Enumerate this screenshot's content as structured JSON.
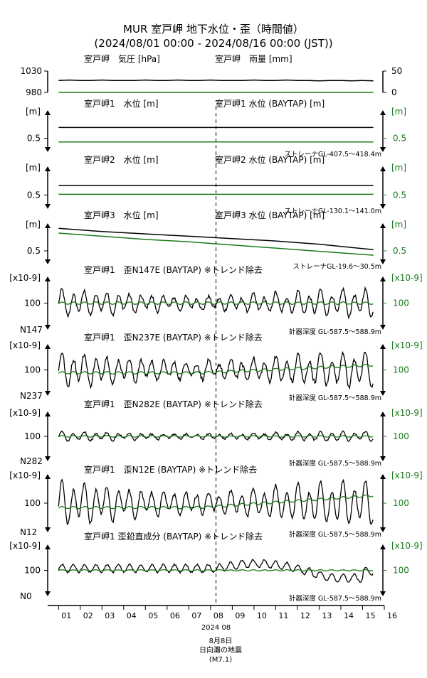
{
  "header": {
    "title": "MUR 室戸岬 地下水位・歪（時間値）",
    "subtitle": "(2024/08/01 00:00 - 2024/08/16 00:00 (JST))"
  },
  "colors": {
    "primary": "#000000",
    "secondary": "#1a7a1a",
    "event_line": "#000000"
  },
  "event": {
    "day": 8.25,
    "date_label": "8月8日",
    "name": "日向灘の地震",
    "magnitude": "(M7.1)"
  },
  "xaxis": {
    "range": [
      0.5,
      16
    ],
    "ticks": [
      "01",
      "02",
      "03",
      "04",
      "05",
      "06",
      "07",
      "08",
      "09",
      "10",
      "11",
      "12",
      "13",
      "14",
      "15",
      "16"
    ],
    "year_month_label": "2024 08"
  },
  "chart_data": [
    {
      "type": "line",
      "left_title": "室戸岬　気圧 [hPa]",
      "right_title": "室戸岬　雨量 [mm]",
      "left_ticks": [
        "1030",
        "980"
      ],
      "right_ticks": [
        "50",
        "0"
      ],
      "ylim_left": [
        980,
        1030
      ],
      "ylim_right": [
        0,
        50
      ],
      "series": [
        {
          "axis": "left",
          "color": "#000000",
          "x": [
            1,
            1.5,
            2,
            2.5,
            3,
            3.5,
            4,
            4.5,
            5,
            5.5,
            6,
            6.5,
            7,
            7.5,
            8,
            8.5,
            9,
            9.5,
            10,
            10.5,
            11,
            11.5,
            12,
            12.5,
            13,
            13.5,
            14,
            14.5,
            15,
            15.5
          ],
          "values": [
            1008,
            1009,
            1008,
            1008,
            1009,
            1008,
            1008,
            1008,
            1009,
            1008,
            1008,
            1009,
            1008,
            1008,
            1009,
            1008,
            1008,
            1008,
            1009,
            1008,
            1008,
            1009,
            1008,
            1008,
            1007,
            1008,
            1008,
            1007,
            1008,
            1007
          ]
        },
        {
          "axis": "right",
          "color": "#1a7a1a",
          "x": [
            1,
            15.5
          ],
          "values": [
            0,
            0
          ]
        }
      ]
    },
    {
      "type": "line",
      "left_title": "室戸岬1　水位 [m]",
      "right_title": "室戸岬1 水位 (BAYTAP) [m]",
      "left_unit": "[m]",
      "right_unit": "[m]",
      "left_ticks": [
        "0.5"
      ],
      "right_ticks": [
        "0.5"
      ],
      "note": "ストレーナGL-407.5～418.4m",
      "ylim": [
        0.45,
        0.7
      ],
      "series": [
        {
          "axis": "left",
          "color": "#000000",
          "x": [
            1,
            15.5
          ],
          "values": [
            0.6,
            0.6
          ]
        },
        {
          "axis": "right",
          "color": "#1a7a1a",
          "x": [
            1,
            15.5
          ],
          "values": [
            0.5,
            0.5
          ]
        }
      ]
    },
    {
      "type": "line",
      "left_title": "室戸岬2　水位 [m]",
      "right_title": "室戸岬2 水位 (BAYTAP) [m]",
      "left_unit": "[m]",
      "right_unit": "[m]",
      "left_ticks": [
        "0.5"
      ],
      "right_ticks": [
        "0.5"
      ],
      "note": "ストレーナGL-130.1～141.0m",
      "ylim": [
        0.45,
        0.7
      ],
      "series": [
        {
          "axis": "left",
          "color": "#000000",
          "x": [
            1,
            15.5
          ],
          "values": [
            0.59,
            0.59
          ]
        },
        {
          "axis": "right",
          "color": "#1a7a1a",
          "x": [
            1,
            15.5
          ],
          "values": [
            0.53,
            0.53
          ]
        }
      ]
    },
    {
      "type": "line",
      "left_title": "室戸岬3　水位 [m]",
      "right_title": "室戸岬3 水位 (BAYTAP) [m]",
      "left_unit": "[m]",
      "right_unit": "[m]",
      "left_ticks": [
        "0.5"
      ],
      "right_ticks": [
        "0.5"
      ],
      "note": "ストレーナGL-19.6～30.5m",
      "ylim": [
        0.3,
        0.75
      ],
      "series": [
        {
          "axis": "left",
          "color": "#000000",
          "x": [
            1,
            3,
            5,
            7,
            9,
            11,
            13,
            15.5
          ],
          "values": [
            0.72,
            0.68,
            0.65,
            0.62,
            0.59,
            0.56,
            0.52,
            0.45
          ]
        },
        {
          "axis": "right",
          "color": "#1a7a1a",
          "x": [
            1,
            3,
            5,
            7,
            9,
            11,
            13,
            15.5
          ],
          "values": [
            0.66,
            0.62,
            0.58,
            0.55,
            0.51,
            0.47,
            0.43,
            0.38
          ]
        }
      ]
    },
    {
      "type": "line",
      "left_title": "室戸岬1　歪N147E (BAYTAP) ※トレンド除去",
      "left_unit": "[x10-9]",
      "right_unit": "[x10-9]",
      "left_ticks": [
        "100"
      ],
      "right_ticks": [
        "100"
      ],
      "bottom_label": "N147",
      "note": "計器深度 GL-587.5～588.9m",
      "ylim": [
        -120,
        120
      ],
      "series": [
        {
          "axis": "left",
          "color": "#000000",
          "kind": "tidal",
          "amplitude": 75,
          "noise": 18,
          "offset": 0,
          "drift": 0
        },
        {
          "axis": "right",
          "color": "#1a7a1a",
          "kind": "smooth",
          "amplitude": 6,
          "offset": 0,
          "drift": 0
        }
      ]
    },
    {
      "type": "line",
      "left_title": "室戸岬1　歪N237E (BAYTAP) ※トレンド除去",
      "left_unit": "[x10-9]",
      "right_unit": "[x10-9]",
      "left_ticks": [
        "100"
      ],
      "right_ticks": [
        "100"
      ],
      "bottom_label": "N237",
      "note": "計器深度 GL-587.5～588.9m",
      "ylim": [
        -120,
        120
      ],
      "series": [
        {
          "axis": "left",
          "color": "#000000",
          "kind": "tidal",
          "amplitude": 100,
          "noise": 25,
          "offset": 0,
          "drift": 0
        },
        {
          "axis": "right",
          "color": "#1a7a1a",
          "kind": "smooth",
          "amplitude": 6,
          "offset": -15,
          "drift": 40
        }
      ]
    },
    {
      "type": "line",
      "left_title": "室戸岬1　歪N282E (BAYTAP) ※トレンド除去",
      "left_unit": "[x10-9]",
      "right_unit": "[x10-9]",
      "left_ticks": [
        "100"
      ],
      "right_ticks": [
        "100"
      ],
      "bottom_label": "N282",
      "note": "計器深度 GL-587.5～588.9m",
      "ylim": [
        -120,
        120
      ],
      "series": [
        {
          "axis": "left",
          "color": "#000000",
          "kind": "tidal",
          "amplitude": 30,
          "noise": 10,
          "offset": 0,
          "drift": 0
        },
        {
          "axis": "right",
          "color": "#1a7a1a",
          "kind": "smooth",
          "amplitude": 4,
          "offset": 0,
          "drift": 0
        }
      ]
    },
    {
      "type": "line",
      "left_title": "室戸岬1　歪N12E (BAYTAP) ※トレンド除去",
      "left_unit": "[x10-9]",
      "right_unit": "[x10-9]",
      "left_ticks": [
        "100"
      ],
      "right_ticks": [
        "100"
      ],
      "bottom_label": "N12",
      "note": "計器深度 GL-587.5～588.9m",
      "ylim": [
        -120,
        120
      ],
      "series": [
        {
          "axis": "left",
          "color": "#000000",
          "kind": "tidal",
          "amplitude": 110,
          "noise": 15,
          "offset": 0,
          "drift": 0
        },
        {
          "axis": "right",
          "color": "#1a7a1a",
          "kind": "smooth",
          "amplitude": 5,
          "offset": -20,
          "drift": 55
        }
      ]
    },
    {
      "type": "line",
      "left_title": "室戸岬1 歪鉛直成分 (BAYTAP) ※トレンド除去",
      "left_unit": "[x10-9]",
      "right_unit": "[x10-9]",
      "left_ticks": [
        "100"
      ],
      "right_ticks": [
        "100"
      ],
      "bottom_label": "N0",
      "note": "計器深度 GL-587.5～588.9m",
      "ylim": [
        -120,
        120
      ],
      "series": [
        {
          "axis": "left",
          "color": "#000000",
          "kind": "vertical",
          "amplitude": 20,
          "noise": 8,
          "offset": 10,
          "drift": 0
        },
        {
          "axis": "right",
          "color": "#1a7a1a",
          "kind": "smooth",
          "amplitude": 3,
          "offset": 0,
          "drift": 0
        }
      ]
    }
  ]
}
